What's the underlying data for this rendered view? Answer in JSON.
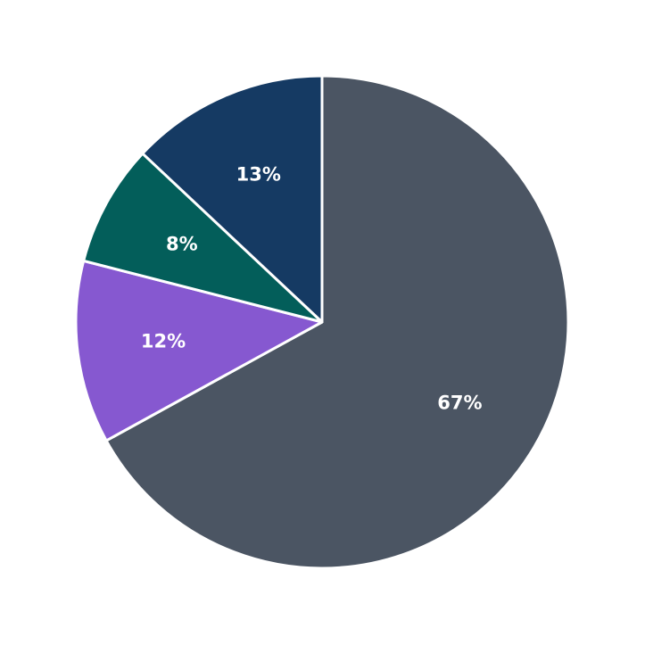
{
  "chart_data": {
    "type": "pie",
    "values": [
      67,
      12,
      8,
      13
    ],
    "value_labels": [
      "67%",
      "12%",
      "8%",
      "13%"
    ],
    "colors": [
      "#4b5563",
      "#8658d0",
      "#035e5a",
      "#153a63"
    ],
    "start_angle": 0,
    "direction": "clockwise"
  }
}
